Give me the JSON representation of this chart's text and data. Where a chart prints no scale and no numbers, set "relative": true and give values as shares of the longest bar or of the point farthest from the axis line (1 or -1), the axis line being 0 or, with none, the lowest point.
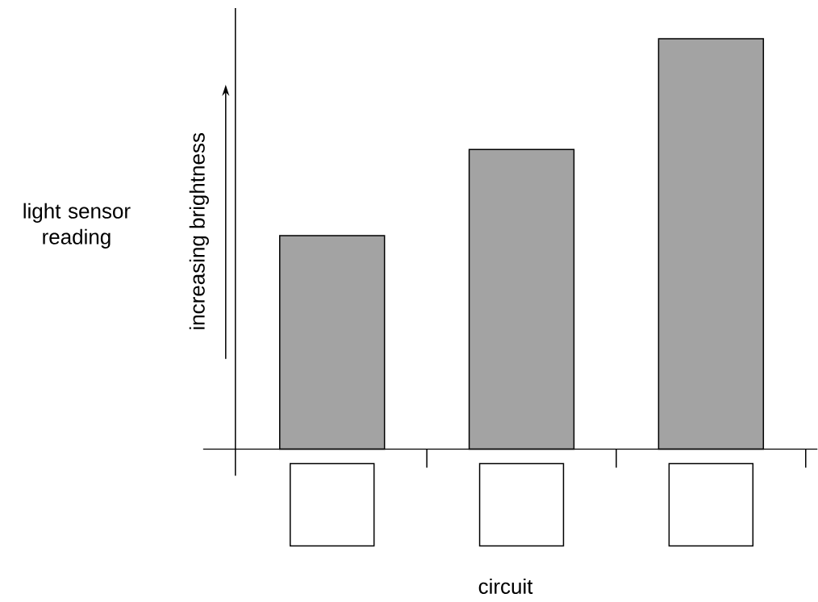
{
  "chart_data": {
    "type": "bar",
    "ylabel": "light sensor reading",
    "annotations": [
      "increasing brightness",
      "circuit"
    ],
    "categories": [
      null,
      null,
      null
    ],
    "values": [
      0.52,
      0.73,
      1
    ],
    "color": "#a3a3a3",
    "relative": true
  }
}
